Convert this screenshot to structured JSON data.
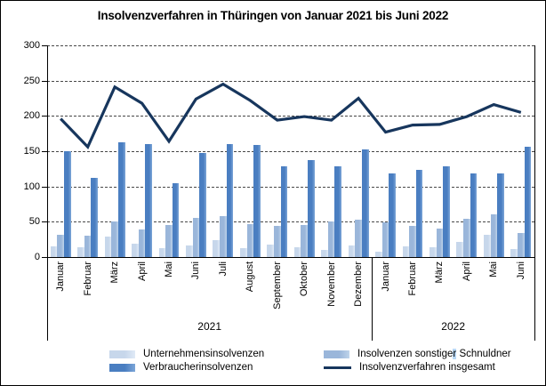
{
  "title": "Insolvenzverfahren in Thüringen von Januar 2021 bis Juni 2022",
  "colors": {
    "light": "#c7d7eb",
    "light_hi": "#e0eaf6",
    "medium": "#9ab6da",
    "medium_hi": "#bed3ea",
    "strong": "#4a7ec1",
    "strong_hi": "#7da6d8",
    "navy": "#17365d",
    "highlight": "#b9d8f6"
  },
  "chart_data": {
    "type": "bar",
    "title": "Insolvenzverfahren in Thüringen von Januar 2021 bis Juni 2022",
    "categories": [
      "Januar",
      "Februar",
      "März",
      "April",
      "Mai",
      "Juni",
      "Juli",
      "August",
      "September",
      "Oktober",
      "November",
      "Dezember",
      "Januar",
      "Februar",
      "März",
      "April",
      "Mai",
      "Juni"
    ],
    "year_groups": [
      {
        "label": "2021",
        "span": 12
      },
      {
        "label": "2022",
        "span": 6
      }
    ],
    "ylim": [
      0,
      300
    ],
    "ytick_step": 50,
    "yticks": [
      0,
      50,
      100,
      150,
      200,
      250,
      300
    ],
    "grid": "horizontal-dashed",
    "legend_position": "bottom",
    "series": [
      {
        "name": "Unternehmensinsolvenzen",
        "type": "bar",
        "color_key": "light",
        "values": [
          15,
          14,
          29,
          19,
          13,
          17,
          24,
          12,
          18,
          14,
          10,
          17,
          8,
          15,
          14,
          22,
          32,
          11
        ]
      },
      {
        "name": "Insolvenzen sonstiger Schnuldner",
        "type": "bar",
        "color_key": "medium",
        "values": [
          31,
          30,
          50,
          39,
          45,
          56,
          58,
          47,
          44,
          45,
          51,
          53,
          49,
          44,
          40,
          54,
          61,
          34
        ]
      },
      {
        "name": "Verbraucherinsolvenzen",
        "type": "bar",
        "color_key": "strong",
        "values": [
          150,
          112,
          162,
          160,
          105,
          148,
          160,
          159,
          128,
          138,
          129,
          153,
          118,
          123,
          129,
          119,
          118,
          156
        ]
      },
      {
        "name": "Insolvenzverfahren insgesamt",
        "type": "line",
        "color_key": "navy",
        "values": [
          196,
          156,
          241,
          218,
          164,
          224,
          245,
          222,
          194,
          199,
          194,
          225,
          177,
          187,
          188,
          199,
          216,
          205
        ]
      }
    ]
  },
  "legend": {
    "items": [
      {
        "swatch": "bar",
        "color_key": "light",
        "parts": [
          "Unternehmensinsolvenzen",
          "",
          ""
        ]
      },
      {
        "swatch": "bar",
        "color_key": "medium",
        "parts": [
          "Insolvenzen sonstige",
          "r",
          " Schnuldner"
        ]
      },
      {
        "swatch": "bar",
        "color_key": "strong",
        "parts": [
          "Verbraucherinsolvenzen",
          "",
          ""
        ]
      },
      {
        "swatch": "line",
        "color_key": "navy",
        "parts": [
          "Insolvenzverfahren insgesamt",
          "",
          ""
        ]
      }
    ]
  }
}
